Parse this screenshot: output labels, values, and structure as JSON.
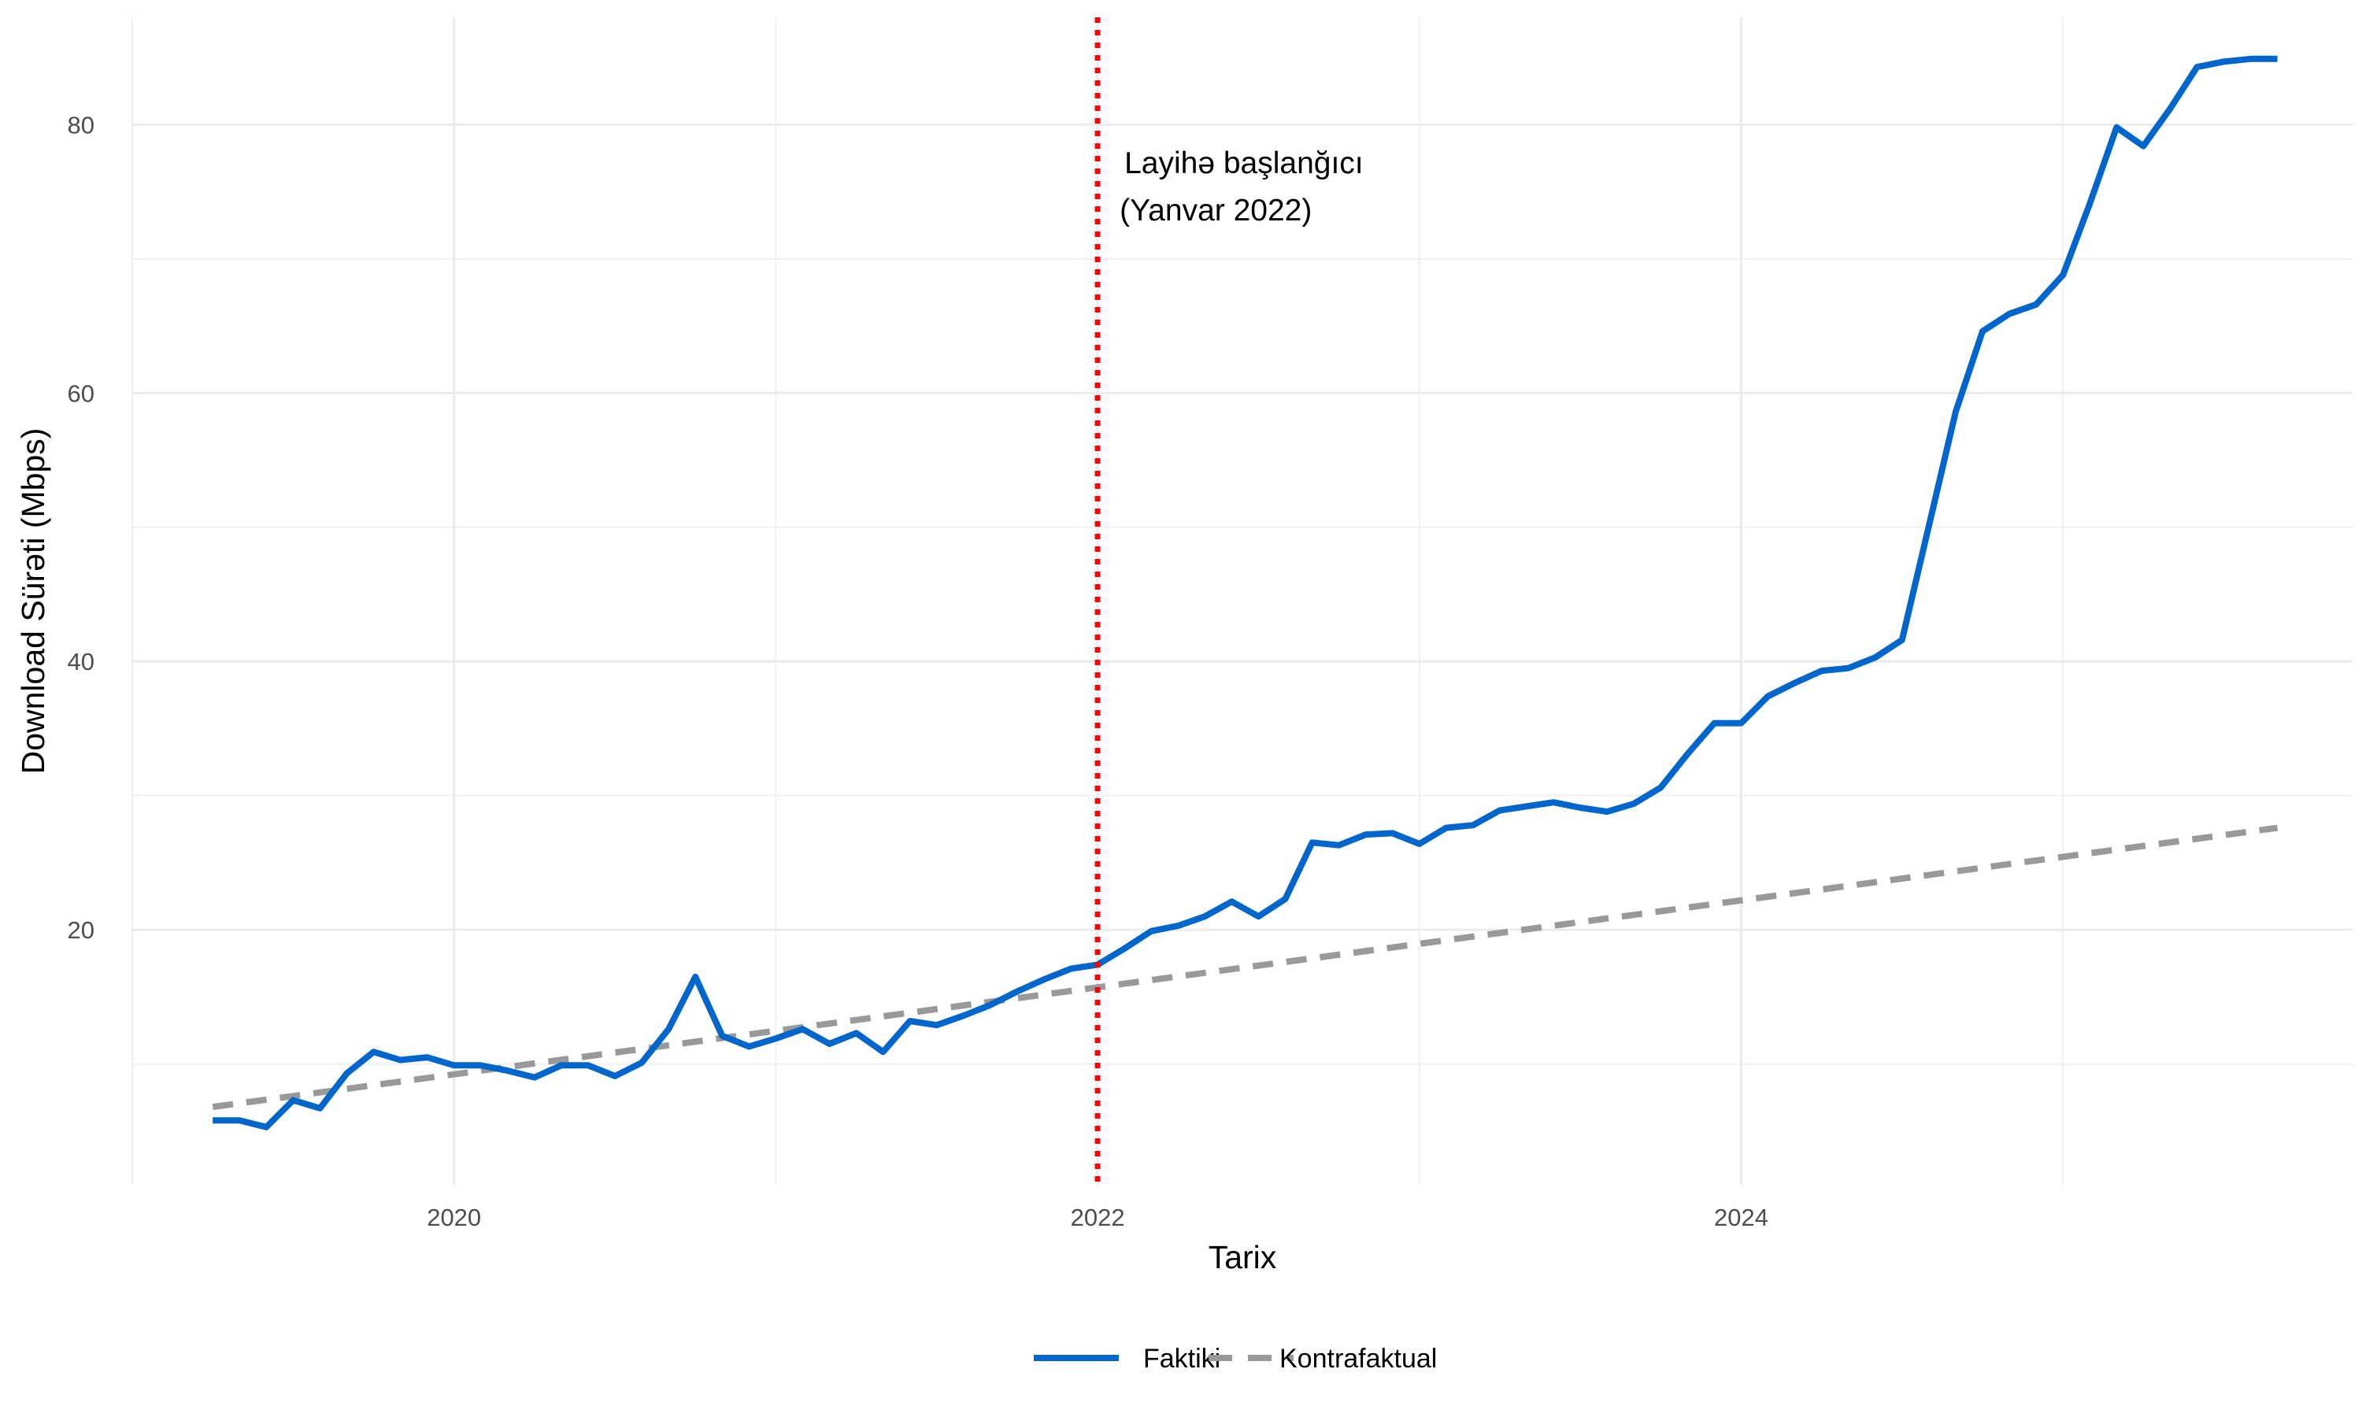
{
  "chart_data": {
    "type": "line",
    "title": "",
    "xlabel": "Tarix",
    "ylabel": "Download Sürəti (Mbps)",
    "x_ticks": [
      "2020",
      "2022",
      "2024"
    ],
    "y_ticks": [
      20,
      40,
      60,
      80
    ],
    "ylim": [
      1,
      88
    ],
    "grid": true,
    "legend_position": "bottom",
    "colors": {
      "actual": "#0066CC",
      "counterfactual": "#999999",
      "intervention": "#FF0000"
    },
    "intervention": {
      "date": "2022-01",
      "label_line1": "Layihə başlanğıcı",
      "label_line2": "(Yanvar 2022)"
    },
    "series": [
      {
        "name": "Faktiki",
        "style": "solid",
        "x": [
          "2019-04",
          "2019-05",
          "2019-06",
          "2019-07",
          "2019-08",
          "2019-09",
          "2019-10",
          "2019-11",
          "2019-12",
          "2020-01",
          "2020-02",
          "2020-03",
          "2020-04",
          "2020-05",
          "2020-06",
          "2020-07",
          "2020-08",
          "2020-09",
          "2020-10",
          "2020-11",
          "2020-12",
          "2021-01",
          "2021-02",
          "2021-03",
          "2021-04",
          "2021-05",
          "2021-06",
          "2021-07",
          "2021-08",
          "2021-09",
          "2021-10",
          "2021-11",
          "2021-12",
          "2022-01",
          "2022-02",
          "2022-03",
          "2022-04",
          "2022-05",
          "2022-06",
          "2022-07",
          "2022-08",
          "2022-09",
          "2022-10",
          "2022-11",
          "2022-12",
          "2023-01",
          "2023-02",
          "2023-03",
          "2023-04",
          "2023-05",
          "2023-06",
          "2023-07",
          "2023-08",
          "2023-09",
          "2023-10",
          "2023-11",
          "2023-12",
          "2024-01",
          "2024-02",
          "2024-03",
          "2024-04",
          "2024-05",
          "2024-06",
          "2024-07",
          "2024-08",
          "2024-09",
          "2024-10",
          "2024-11",
          "2024-12",
          "2025-01",
          "2025-02",
          "2025-03",
          "2025-04",
          "2025-05",
          "2025-06",
          "2025-07",
          "2025-08",
          "2025-09"
        ],
        "values": [
          5.8,
          5.8,
          5.3,
          7.3,
          6.7,
          9.3,
          10.9,
          10.3,
          10.5,
          9.9,
          9.9,
          9.5,
          9.0,
          9.9,
          9.9,
          9.1,
          10.1,
          12.6,
          16.5,
          12.1,
          11.3,
          11.9,
          12.6,
          11.5,
          12.3,
          10.9,
          13.2,
          12.9,
          13.6,
          14.4,
          15.4,
          16.3,
          17.1,
          17.4,
          18.6,
          19.9,
          20.3,
          21.0,
          22.1,
          21.0,
          22.3,
          26.5,
          26.3,
          27.1,
          27.2,
          26.4,
          27.6,
          27.8,
          28.9,
          29.2,
          29.5,
          29.1,
          28.8,
          29.4,
          30.6,
          33.1,
          35.4,
          35.4,
          37.4,
          38.4,
          39.3,
          39.5,
          40.3,
          41.6,
          50.1,
          58.6,
          64.6,
          65.9,
          66.6,
          68.8,
          74.1,
          79.8,
          78.4,
          81.2,
          84.3,
          84.7,
          84.9,
          84.9
        ]
      },
      {
        "name": "Kontrafaktual",
        "style": "dashed",
        "x": [
          "2019-04",
          "2025-09"
        ],
        "values": [
          6.8,
          27.6
        ]
      }
    ]
  }
}
